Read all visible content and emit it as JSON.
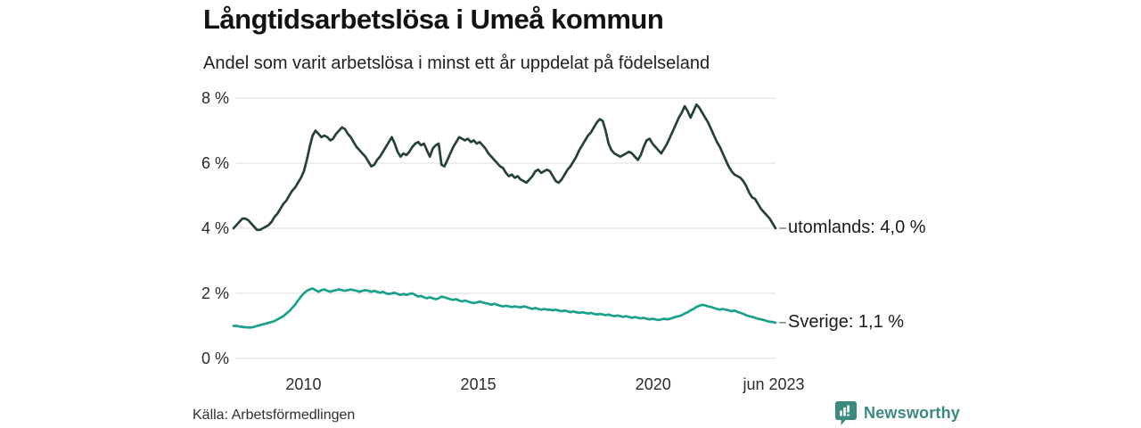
{
  "header": {
    "title": "Långtidsarbetslösa i Umeå kommun",
    "subtitle": "Andel som varit arbetslösa i minst ett år uppdelat på födelseland"
  },
  "chart_data": {
    "type": "line",
    "title": "Långtidsarbetslösa i Umeå kommun",
    "subtitle": "Andel som varit arbetslösa i minst ett år uppdelat på födelseland",
    "unit": "%",
    "x_range_years": [
      2008.0,
      2023.5
    ],
    "ylim": [
      0,
      8
    ],
    "grid": "horizontal",
    "grid_color": "#e2e2e2",
    "y_ticks": [
      {
        "label": "8 %",
        "value": 8
      },
      {
        "label": "6 %",
        "value": 6
      },
      {
        "label": "4 %",
        "value": 4
      },
      {
        "label": "2 %",
        "value": 2
      },
      {
        "label": "0 %",
        "value": 0
      }
    ],
    "x_ticks": [
      {
        "label": "2010",
        "year": 2010
      },
      {
        "label": "2015",
        "year": 2015
      },
      {
        "label": "2020",
        "year": 2020
      },
      {
        "label": "jun 2023",
        "year": 2023.45
      }
    ],
    "start_month": "2008-01",
    "end_month": "2023-06",
    "series": [
      {
        "name": "utomlands",
        "color": "#25413a",
        "end_label": "utomlands: 4,0 %",
        "end_value": 4.0,
        "values": [
          4.0,
          4.1,
          4.2,
          4.3,
          4.3,
          4.25,
          4.15,
          4.05,
          3.95,
          3.95,
          4.0,
          4.05,
          4.1,
          4.2,
          4.35,
          4.45,
          4.6,
          4.75,
          4.85,
          5.0,
          5.15,
          5.25,
          5.4,
          5.55,
          5.75,
          6.1,
          6.5,
          6.85,
          7.0,
          6.9,
          6.8,
          6.85,
          6.8,
          6.7,
          6.75,
          6.9,
          7.0,
          7.1,
          7.05,
          6.9,
          6.8,
          6.65,
          6.5,
          6.4,
          6.3,
          6.2,
          6.05,
          5.9,
          5.95,
          6.1,
          6.2,
          6.35,
          6.5,
          6.65,
          6.8,
          6.6,
          6.35,
          6.2,
          6.3,
          6.25,
          6.35,
          6.5,
          6.6,
          6.65,
          6.55,
          6.6,
          6.4,
          6.2,
          6.45,
          6.55,
          6.6,
          5.95,
          5.9,
          6.1,
          6.3,
          6.5,
          6.65,
          6.8,
          6.75,
          6.7,
          6.75,
          6.65,
          6.7,
          6.6,
          6.65,
          6.55,
          6.45,
          6.3,
          6.2,
          6.1,
          6.0,
          5.9,
          5.85,
          5.7,
          5.6,
          5.65,
          5.55,
          5.6,
          5.5,
          5.45,
          5.4,
          5.5,
          5.6,
          5.75,
          5.8,
          5.7,
          5.75,
          5.8,
          5.75,
          5.6,
          5.45,
          5.4,
          5.5,
          5.65,
          5.8,
          5.9,
          6.05,
          6.2,
          6.4,
          6.55,
          6.7,
          6.85,
          6.95,
          7.1,
          7.25,
          7.35,
          7.3,
          7.0,
          6.6,
          6.4,
          6.3,
          6.25,
          6.2,
          6.25,
          6.3,
          6.35,
          6.3,
          6.2,
          6.1,
          6.25,
          6.5,
          6.7,
          6.75,
          6.6,
          6.5,
          6.4,
          6.3,
          6.45,
          6.6,
          6.8,
          7.0,
          7.2,
          7.4,
          7.55,
          7.75,
          7.6,
          7.4,
          7.6,
          7.8,
          7.7,
          7.55,
          7.4,
          7.25,
          7.05,
          6.85,
          6.65,
          6.5,
          6.3,
          6.1,
          5.9,
          5.75,
          5.65,
          5.6,
          5.55,
          5.45,
          5.3,
          5.1,
          4.95,
          4.9,
          4.75,
          4.6,
          4.5,
          4.4,
          4.3,
          4.15,
          4.0
        ]
      },
      {
        "name": "Sverige",
        "color": "#19a18c",
        "end_label": "Sverige: 1,1 %",
        "end_value": 1.1,
        "values": [
          1.0,
          1.0,
          0.98,
          0.97,
          0.96,
          0.95,
          0.95,
          0.97,
          1.0,
          1.02,
          1.05,
          1.07,
          1.1,
          1.12,
          1.15,
          1.2,
          1.25,
          1.3,
          1.38,
          1.45,
          1.55,
          1.65,
          1.78,
          1.9,
          2.0,
          2.08,
          2.12,
          2.15,
          2.1,
          2.05,
          2.1,
          2.12,
          2.08,
          2.05,
          2.08,
          2.1,
          2.12,
          2.1,
          2.08,
          2.1,
          2.12,
          2.1,
          2.08,
          2.05,
          2.08,
          2.1,
          2.08,
          2.05,
          2.08,
          2.05,
          2.02,
          2.05,
          2.0,
          1.98,
          2.0,
          2.02,
          1.98,
          1.95,
          1.98,
          1.95,
          1.98,
          2.0,
          1.95,
          1.9,
          1.92,
          1.88,
          1.85,
          1.88,
          1.85,
          1.82,
          1.85,
          1.9,
          1.88,
          1.85,
          1.82,
          1.8,
          1.82,
          1.78,
          1.75,
          1.78,
          1.75,
          1.72,
          1.7,
          1.72,
          1.75,
          1.72,
          1.7,
          1.68,
          1.65,
          1.68,
          1.65,
          1.62,
          1.6,
          1.62,
          1.6,
          1.58,
          1.6,
          1.58,
          1.57,
          1.6,
          1.58,
          1.55,
          1.52,
          1.55,
          1.52,
          1.5,
          1.52,
          1.5,
          1.5,
          1.48,
          1.5,
          1.47,
          1.45,
          1.47,
          1.45,
          1.42,
          1.45,
          1.42,
          1.4,
          1.42,
          1.4,
          1.38,
          1.4,
          1.37,
          1.35,
          1.37,
          1.35,
          1.33,
          1.35,
          1.32,
          1.3,
          1.32,
          1.3,
          1.28,
          1.3,
          1.27,
          1.25,
          1.27,
          1.25,
          1.23,
          1.25,
          1.22,
          1.2,
          1.22,
          1.2,
          1.18,
          1.2,
          1.22,
          1.2,
          1.22,
          1.25,
          1.28,
          1.3,
          1.33,
          1.38,
          1.42,
          1.48,
          1.52,
          1.58,
          1.62,
          1.65,
          1.63,
          1.6,
          1.58,
          1.55,
          1.52,
          1.5,
          1.52,
          1.5,
          1.48,
          1.45,
          1.47,
          1.43,
          1.4,
          1.37,
          1.33,
          1.3,
          1.28,
          1.25,
          1.22,
          1.2,
          1.18,
          1.15,
          1.13,
          1.12,
          1.1
        ]
      }
    ],
    "source": "Källa: Arbetsförmedlingen"
  },
  "footer": {
    "brand": "Newsworthy",
    "brand_color": "#3a8a80",
    "brand_icon": "newsworthy-speech-bubble-bar-chart"
  }
}
